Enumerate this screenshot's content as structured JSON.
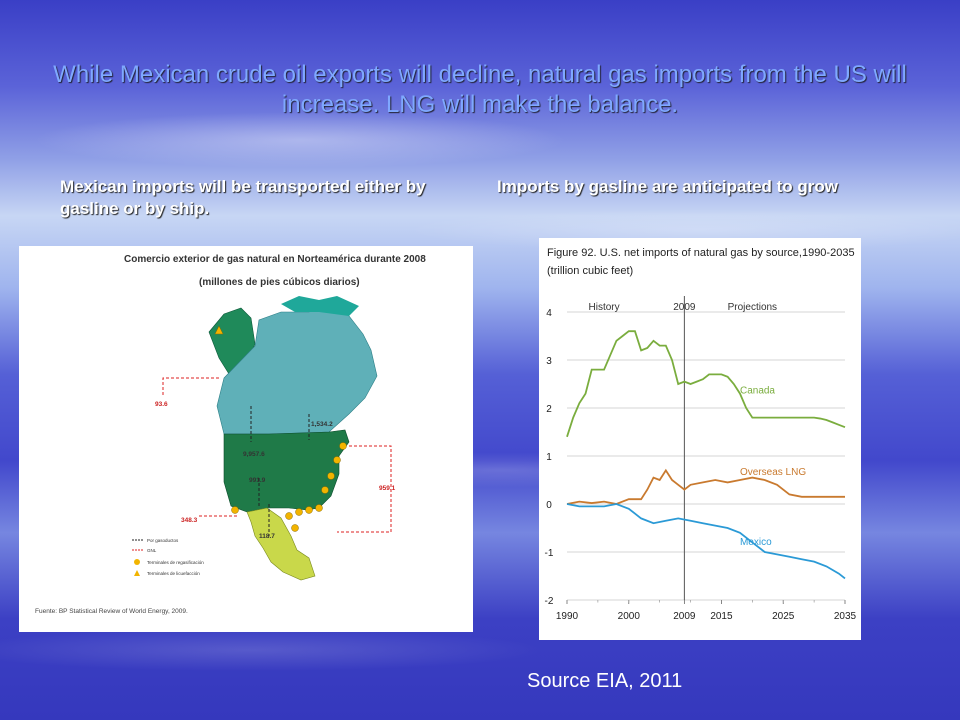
{
  "slide": {
    "title": "While Mexican crude oil exports will decline, natural gas imports from the US will increase. LNG will make the balance.",
    "left_heading": "Mexican imports will be transported either by gasline or by ship.",
    "right_heading": "Imports by gasline are anticipated to grow",
    "source": "Source EIA, 2011"
  },
  "map": {
    "title": "Comercio exterior de gas natural en Norteamérica durante 2008",
    "subtitle": "(millones de pies cúbicos diarios)",
    "values": {
      "alaska_lng": "93.6",
      "canada_us": "9,957.6",
      "east_canada": "1,534.2",
      "us_mexico": "991.9",
      "mexico_south": "118.7",
      "west_lng": "348.3",
      "east_lng": "959.1"
    },
    "legend": {
      "pipeline": "Por gasoductos",
      "lng": "GNL",
      "regas": "Terminales de regasificación",
      "liq": "Terminales de licuefacción"
    },
    "source": "Fuente: BP Statistical Review of World Energy, 2009."
  },
  "chart_data": {
    "type": "line",
    "title": "Figure 92. U.S. net imports of natural gas by source,1990-2035",
    "subtitle": "(trillion cubic feet)",
    "xlim": [
      1990,
      2035
    ],
    "ylim": [
      -2,
      4
    ],
    "xticks": [
      "1990",
      "2000",
      "2009",
      "2015",
      "2025",
      "2035"
    ],
    "xtick_values": [
      1990,
      2000,
      2009,
      2015,
      2025,
      2035
    ],
    "yticks": [
      "4",
      "3",
      "2",
      "1",
      "0",
      "-1",
      "-2"
    ],
    "ytick_values": [
      4,
      3,
      2,
      1,
      0,
      -1,
      -2
    ],
    "history_label": "History",
    "divider_label": "2009",
    "projection_label": "Projections",
    "divider_year": 2009,
    "colors": {
      "canada": "#7aad3e",
      "lng": "#c97a2f",
      "mexico": "#2b9ad6",
      "grid": "#c8c8c8"
    },
    "series": [
      {
        "name": "Canada",
        "color": "#7aad3e",
        "x": [
          1990,
          1991,
          1992,
          1993,
          1994,
          1995,
          1996,
          1997,
          1998,
          1999,
          2000,
          2001,
          2002,
          2003,
          2004,
          2005,
          2006,
          2007,
          2008,
          2009,
          2010,
          2011,
          2012,
          2013,
          2014,
          2015,
          2016,
          2017,
          2018,
          2019,
          2020,
          2021,
          2022,
          2023,
          2024,
          2025,
          2026,
          2027,
          2028,
          2029,
          2030,
          2031,
          2032,
          2033,
          2034,
          2035
        ],
        "y": [
          1.4,
          1.8,
          2.1,
          2.3,
          2.8,
          2.8,
          2.8,
          3.1,
          3.4,
          3.5,
          3.6,
          3.6,
          3.2,
          3.25,
          3.4,
          3.3,
          3.3,
          3.0,
          2.5,
          2.55,
          2.5,
          2.55,
          2.6,
          2.7,
          2.7,
          2.7,
          2.65,
          2.5,
          2.3,
          2.0,
          1.8,
          1.8,
          1.8,
          1.8,
          1.8,
          1.8,
          1.8,
          1.8,
          1.8,
          1.8,
          1.8,
          1.78,
          1.75,
          1.7,
          1.65,
          1.6
        ]
      },
      {
        "name": "Overseas LNG",
        "color": "#c97a2f",
        "x": [
          1990,
          1992,
          1994,
          1996,
          1998,
          2000,
          2002,
          2003,
          2004,
          2005,
          2006,
          2007,
          2008,
          2009,
          2010,
          2012,
          2014,
          2016,
          2018,
          2020,
          2022,
          2024,
          2026,
          2028,
          2030,
          2032,
          2035
        ],
        "y": [
          0.0,
          0.05,
          0.02,
          0.05,
          0.0,
          0.1,
          0.1,
          0.3,
          0.55,
          0.5,
          0.7,
          0.5,
          0.4,
          0.3,
          0.4,
          0.45,
          0.5,
          0.45,
          0.5,
          0.55,
          0.5,
          0.4,
          0.2,
          0.15,
          0.15,
          0.15,
          0.15
        ]
      },
      {
        "name": "Mexico",
        "color": "#2b9ad6",
        "x": [
          1990,
          1992,
          1994,
          1996,
          1998,
          2000,
          2002,
          2004,
          2006,
          2008,
          2010,
          2012,
          2014,
          2016,
          2018,
          2020,
          2021,
          2022,
          2024,
          2026,
          2028,
          2030,
          2032,
          2034,
          2035
        ],
        "y": [
          0.0,
          -0.05,
          -0.05,
          -0.05,
          0.0,
          -0.1,
          -0.3,
          -0.4,
          -0.35,
          -0.3,
          -0.35,
          -0.4,
          -0.45,
          -0.5,
          -0.6,
          -0.8,
          -0.9,
          -1.0,
          -1.05,
          -1.1,
          -1.15,
          -1.2,
          -1.3,
          -1.45,
          -1.55
        ]
      }
    ]
  }
}
